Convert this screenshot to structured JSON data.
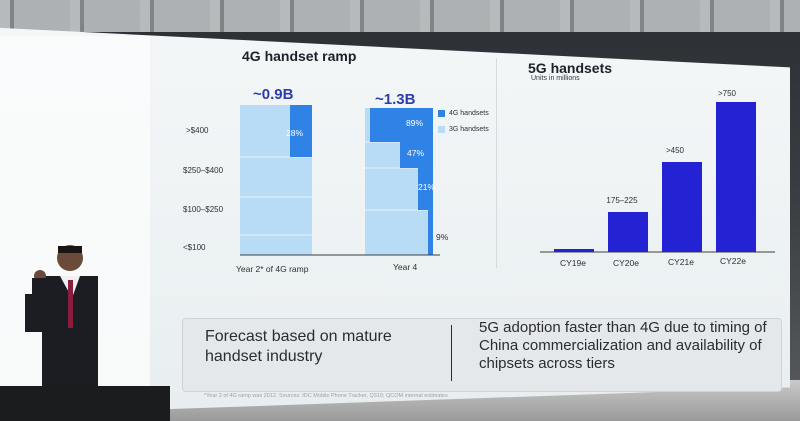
{
  "slide": {
    "left_title": "4G handset ramp",
    "right_title": "5G handsets",
    "right_subtitle": "Units in millions",
    "tiers": [
      ">$400",
      "$250–$400",
      "$100–$250",
      "<$100"
    ],
    "legend": {
      "4g_label": "4G handsets",
      "3g_label": "3G handsets"
    },
    "footer_left": "Forecast based on mature handset industry",
    "footer_right": "5G adoption faster than 4G due to timing of China commercialization and availability of chipsets across tiers",
    "footnote": "*Year 2 of 4G ramp was 2012. Sources: IDC Mobile Phone Tracker, Q319; QCOM internal estimates"
  },
  "colors": {
    "blue_4g": "#2f83e7",
    "blue_3g": "#b9dcf6",
    "dark_blue": "#2323d4",
    "text": "#2d3038"
  },
  "chart_data": [
    {
      "type": "bar",
      "title": "4G handset ramp",
      "categories": [
        "Year 2* of 4G ramp",
        "Year 4"
      ],
      "totals": [
        "~0.9B",
        "~1.3B"
      ],
      "tiers": [
        ">$400",
        "$250–$400",
        "$100–$250",
        "<$100"
      ],
      "series": [
        {
          "name": "4G handsets",
          "labels": [
            "28%",
            "",
            "",
            "",
            "89%",
            "47%",
            "21%",
            "9%"
          ]
        }
      ],
      "legend": "right"
    },
    {
      "type": "bar",
      "title": "5G handsets",
      "ylabel": "Units in millions",
      "categories": [
        "CY19e",
        "CY20e",
        "CY21e",
        "CY22e"
      ],
      "values": [
        15,
        200,
        450,
        750
      ],
      "labels": [
        "",
        "175–225",
        ">450",
        ">750"
      ]
    }
  ]
}
